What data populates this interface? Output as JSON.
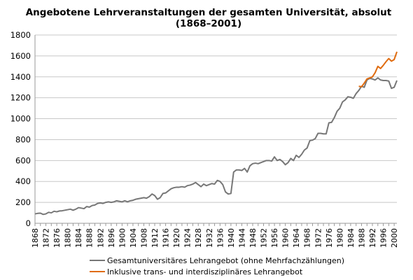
{
  "chart_data": {
    "type": "line",
    "title_line1": "Angebotene Lehrveranstaltungen der gesamten Universität, absolut",
    "title_line2": "(1868–2001)",
    "xlabel": "",
    "ylabel": "",
    "xlim": [
      1868,
      2001
    ],
    "ylim": [
      0,
      1800
    ],
    "y_ticks": [
      0,
      200,
      400,
      600,
      800,
      1000,
      1200,
      1400,
      1600,
      1800
    ],
    "x_ticks": [
      1868,
      1872,
      1876,
      1880,
      1884,
      1888,
      1892,
      1896,
      1900,
      1904,
      1908,
      1912,
      1916,
      1920,
      1924,
      1928,
      1932,
      1936,
      1940,
      1944,
      1948,
      1952,
      1956,
      1960,
      1964,
      1968,
      1972,
      1976,
      1980,
      1984,
      1988,
      1992,
      1996,
      2000
    ],
    "grid": "horizontal",
    "legend_position": "bottom",
    "series": [
      {
        "name": "Gesamtuniversitäres Lehrangebot (ohne Mehrfachzählungen)",
        "color": "#777777",
        "points": [
          [
            1868,
            90
          ],
          [
            1869,
            95
          ],
          [
            1870,
            97
          ],
          [
            1871,
            85
          ],
          [
            1872,
            90
          ],
          [
            1873,
            105
          ],
          [
            1874,
            100
          ],
          [
            1875,
            115
          ],
          [
            1876,
            110
          ],
          [
            1877,
            118
          ],
          [
            1878,
            120
          ],
          [
            1879,
            125
          ],
          [
            1880,
            130
          ],
          [
            1881,
            135
          ],
          [
            1882,
            125
          ],
          [
            1883,
            135
          ],
          [
            1884,
            150
          ],
          [
            1885,
            145
          ],
          [
            1886,
            140
          ],
          [
            1887,
            160
          ],
          [
            1888,
            155
          ],
          [
            1889,
            170
          ],
          [
            1890,
            175
          ],
          [
            1891,
            190
          ],
          [
            1892,
            195
          ],
          [
            1893,
            190
          ],
          [
            1894,
            200
          ],
          [
            1895,
            205
          ],
          [
            1896,
            200
          ],
          [
            1897,
            205
          ],
          [
            1898,
            215
          ],
          [
            1899,
            210
          ],
          [
            1900,
            205
          ],
          [
            1901,
            215
          ],
          [
            1902,
            205
          ],
          [
            1903,
            215
          ],
          [
            1904,
            220
          ],
          [
            1905,
            230
          ],
          [
            1906,
            235
          ],
          [
            1907,
            240
          ],
          [
            1908,
            245
          ],
          [
            1909,
            240
          ],
          [
            1910,
            255
          ],
          [
            1911,
            280
          ],
          [
            1912,
            265
          ],
          [
            1913,
            230
          ],
          [
            1914,
            245
          ],
          [
            1915,
            285
          ],
          [
            1916,
            290
          ],
          [
            1917,
            310
          ],
          [
            1918,
            330
          ],
          [
            1919,
            340
          ],
          [
            1920,
            345
          ],
          [
            1921,
            345
          ],
          [
            1922,
            350
          ],
          [
            1923,
            345
          ],
          [
            1924,
            360
          ],
          [
            1925,
            365
          ],
          [
            1926,
            375
          ],
          [
            1927,
            390
          ],
          [
            1928,
            370
          ],
          [
            1929,
            350
          ],
          [
            1930,
            375
          ],
          [
            1931,
            360
          ],
          [
            1932,
            370
          ],
          [
            1933,
            380
          ],
          [
            1934,
            375
          ],
          [
            1935,
            410
          ],
          [
            1936,
            400
          ],
          [
            1937,
            370
          ],
          [
            1938,
            300
          ],
          [
            1939,
            280
          ],
          [
            1940,
            285
          ],
          [
            1941,
            490
          ],
          [
            1942,
            510
          ],
          [
            1943,
            510
          ],
          [
            1944,
            505
          ],
          [
            1945,
            525
          ],
          [
            1946,
            490
          ],
          [
            1947,
            550
          ],
          [
            1948,
            570
          ],
          [
            1949,
            575
          ],
          [
            1950,
            570
          ],
          [
            1951,
            580
          ],
          [
            1952,
            590
          ],
          [
            1953,
            600
          ],
          [
            1954,
            600
          ],
          [
            1955,
            595
          ],
          [
            1956,
            635
          ],
          [
            1957,
            600
          ],
          [
            1958,
            610
          ],
          [
            1959,
            590
          ],
          [
            1960,
            560
          ],
          [
            1961,
            580
          ],
          [
            1962,
            620
          ],
          [
            1963,
            600
          ],
          [
            1964,
            650
          ],
          [
            1965,
            630
          ],
          [
            1966,
            660
          ],
          [
            1967,
            700
          ],
          [
            1968,
            720
          ],
          [
            1969,
            790
          ],
          [
            1970,
            795
          ],
          [
            1971,
            810
          ],
          [
            1972,
            860
          ],
          [
            1973,
            860
          ],
          [
            1974,
            855
          ],
          [
            1975,
            855
          ],
          [
            1976,
            960
          ],
          [
            1977,
            965
          ],
          [
            1978,
            1010
          ],
          [
            1979,
            1070
          ],
          [
            1980,
            1100
          ],
          [
            1981,
            1160
          ],
          [
            1982,
            1180
          ],
          [
            1983,
            1210
          ],
          [
            1984,
            1205
          ],
          [
            1985,
            1195
          ],
          [
            1986,
            1240
          ],
          [
            1987,
            1270
          ],
          [
            1988,
            1310
          ],
          [
            1989,
            1300
          ],
          [
            1990,
            1370
          ],
          [
            1991,
            1385
          ],
          [
            1992,
            1380
          ],
          [
            1993,
            1370
          ],
          [
            1994,
            1390
          ],
          [
            1995,
            1370
          ],
          [
            1996,
            1365
          ],
          [
            1997,
            1365
          ],
          [
            1998,
            1360
          ],
          [
            1999,
            1290
          ],
          [
            2000,
            1300
          ],
          [
            2001,
            1365
          ]
        ]
      },
      {
        "name": "Inklusive trans- und interdisziplinäres Lehrangebot",
        "color": "#e06c10",
        "points": [
          [
            1987,
            1310
          ],
          [
            1988,
            1305
          ],
          [
            1989,
            1340
          ],
          [
            1990,
            1380
          ],
          [
            1991,
            1390
          ],
          [
            1992,
            1400
          ],
          [
            1993,
            1440
          ],
          [
            1994,
            1500
          ],
          [
            1995,
            1480
          ],
          [
            1996,
            1510
          ],
          [
            1997,
            1545
          ],
          [
            1998,
            1575
          ],
          [
            1999,
            1550
          ],
          [
            2000,
            1565
          ],
          [
            2001,
            1640
          ]
        ]
      }
    ]
  }
}
